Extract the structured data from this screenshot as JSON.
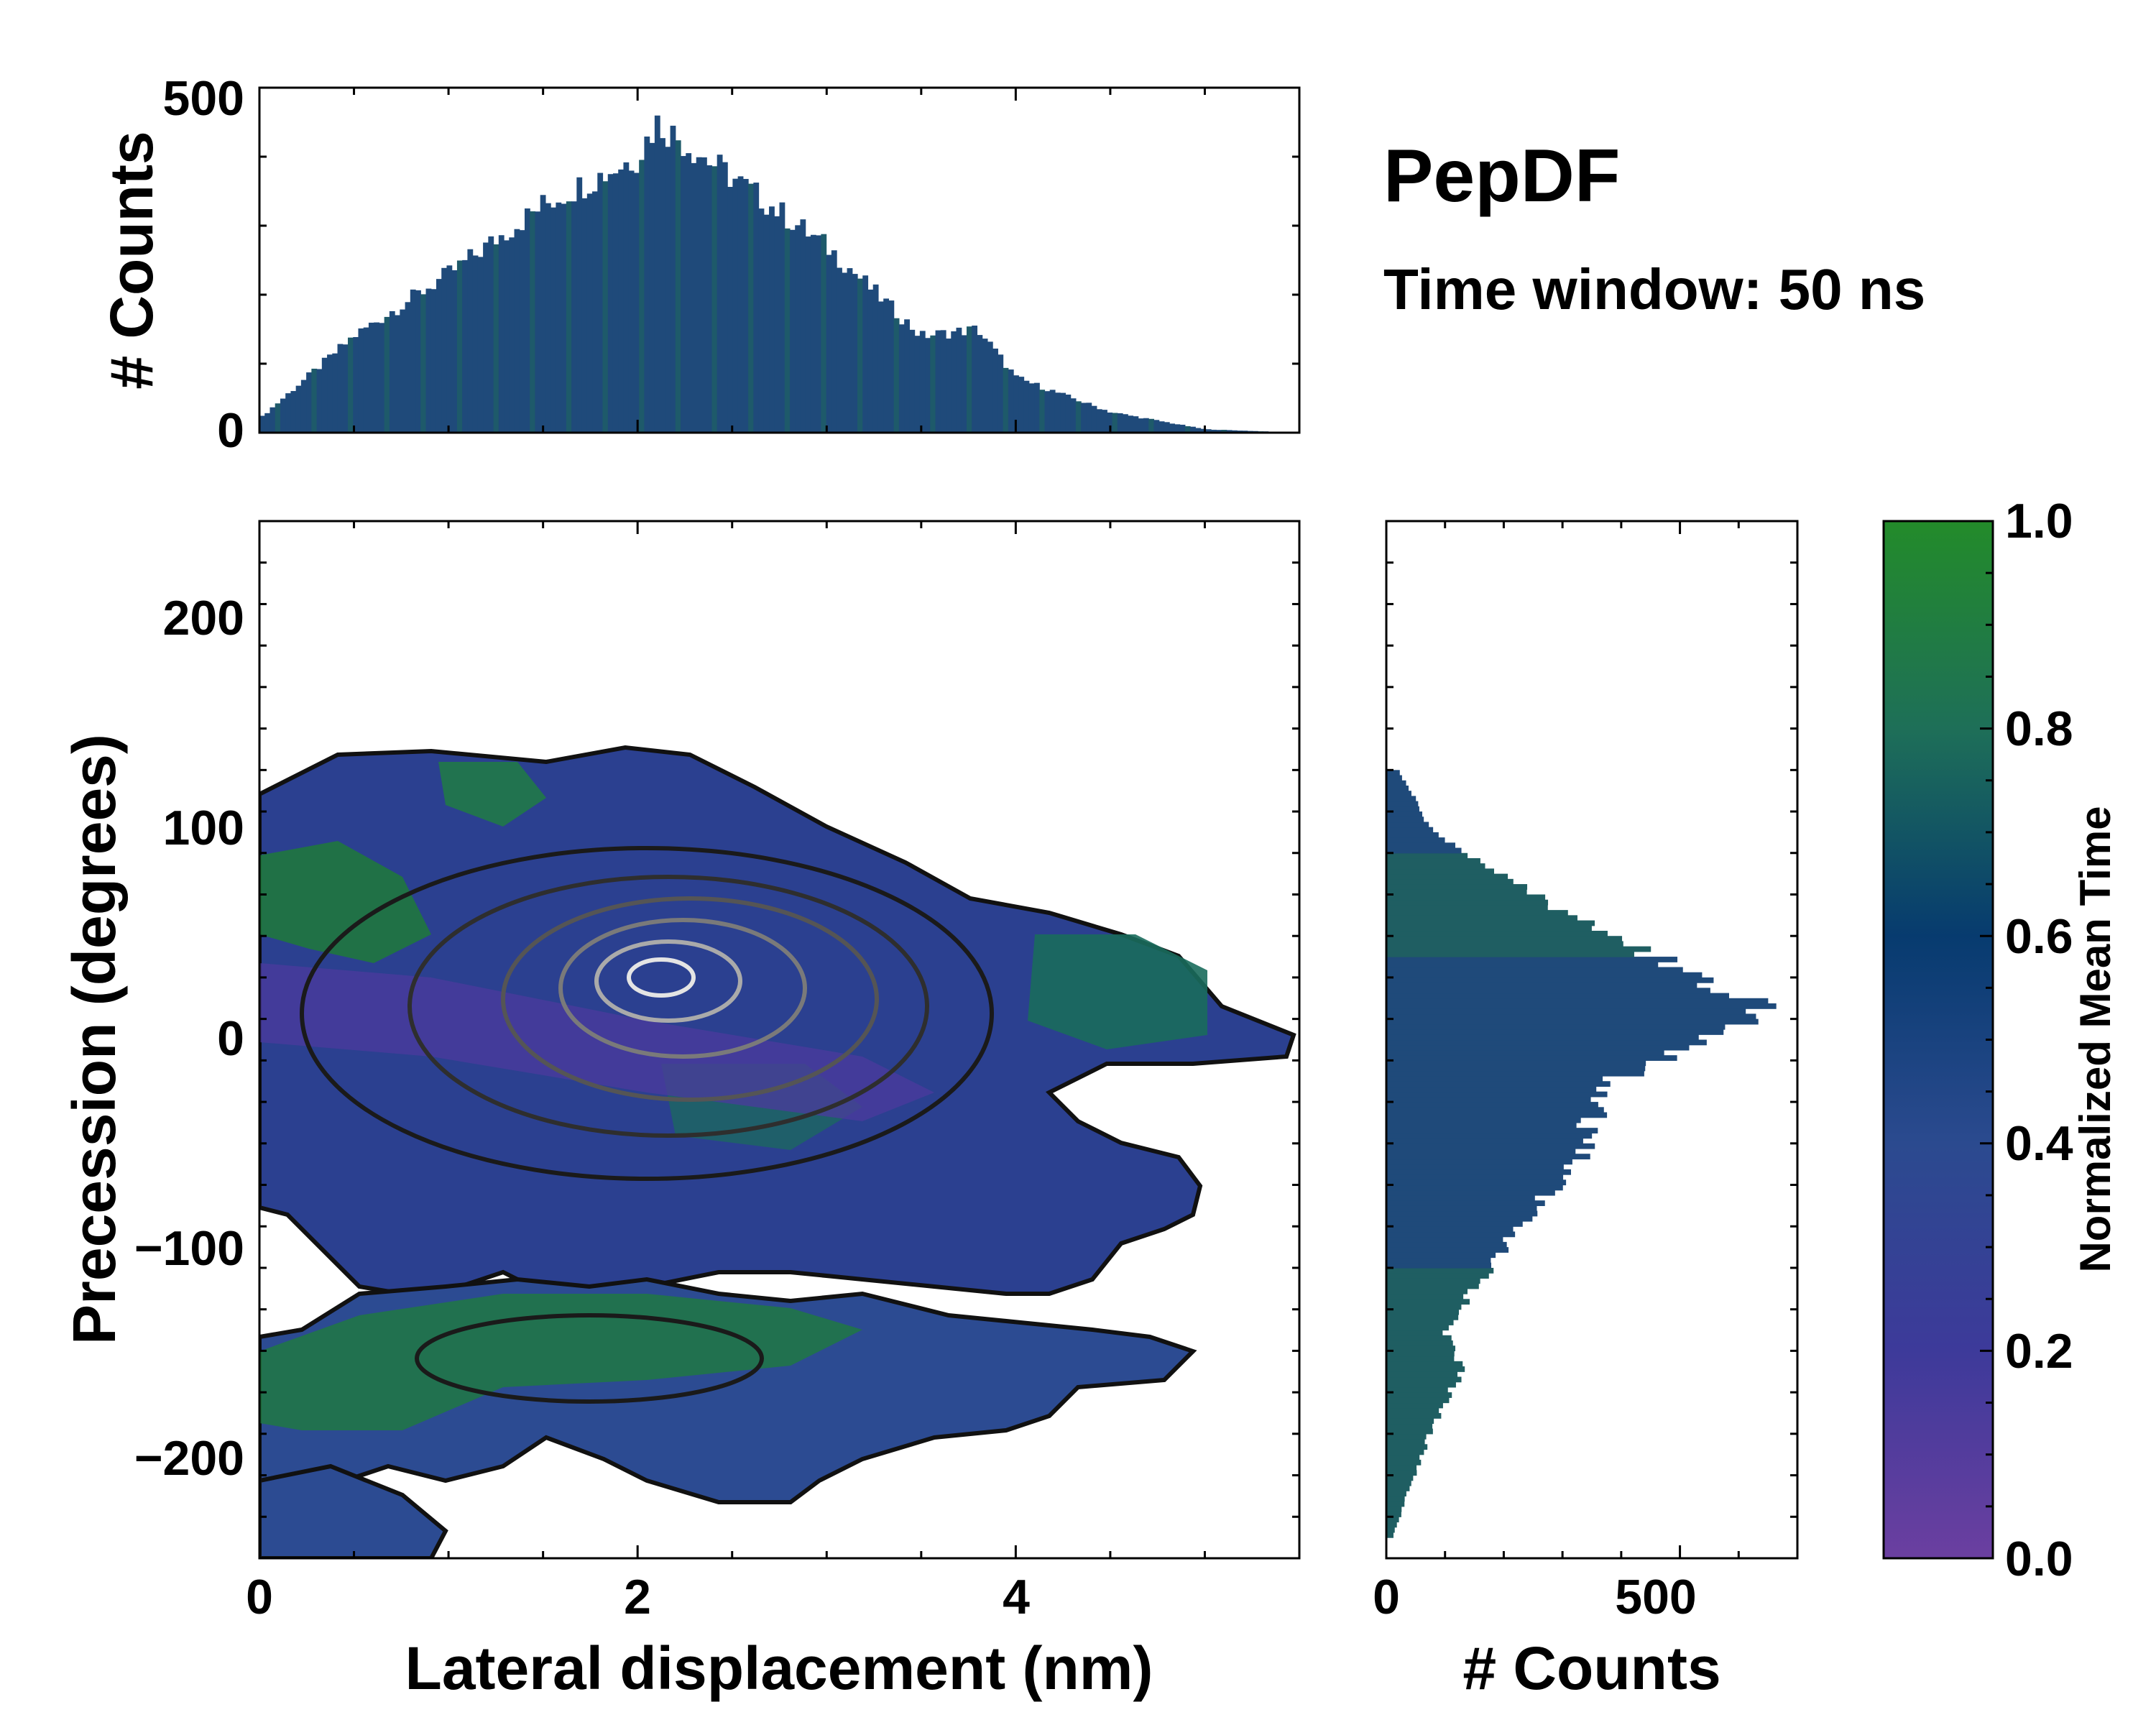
{
  "chart_data": [
    {
      "id": "top_histogram",
      "type": "bar",
      "title": "",
      "xlabel": "",
      "ylabel": "# Counts",
      "xlim": [
        0,
        5.5
      ],
      "ylim": [
        0,
        500
      ],
      "yticks": [
        0,
        500
      ],
      "ytick_labels": [
        "0",
        "500"
      ],
      "x": [
        0.0,
        0.5,
        1.0,
        1.5,
        2.0,
        2.1,
        2.5,
        3.0,
        3.5,
        3.8,
        4.0,
        4.5,
        5.0,
        5.5
      ],
      "values": [
        20,
        140,
        230,
        330,
        400,
        450,
        370,
        270,
        140,
        150,
        80,
        30,
        5,
        0
      ],
      "color": "#1f4a7a"
    },
    {
      "id": "title_block",
      "type": "table",
      "title": "PepDF",
      "subtitle": "Time window: 50 ns"
    },
    {
      "id": "main_2d_histogram",
      "type": "heatmap",
      "xlabel": "Lateral displacement (nm)",
      "ylabel": "Precession (degrees)",
      "xlim": [
        0,
        5.5
      ],
      "ylim": [
        -250,
        250
      ],
      "xticks": [
        0,
        2,
        4
      ],
      "xtick_labels": [
        "0",
        "2",
        "4"
      ],
      "yticks": [
        200,
        100,
        0,
        -100,
        -200
      ],
      "ytick_labels": [
        "200",
        "100",
        "0",
        "−100",
        "−200"
      ],
      "density_peak": {
        "x": 2.0,
        "y": 25
      },
      "contour_levels": 6
    },
    {
      "id": "right_histogram",
      "type": "bar",
      "orientation": "horizontal",
      "xlabel": "# Counts",
      "ylabel": "",
      "xlim": [
        0,
        700
      ],
      "ylim": [
        -250,
        250
      ],
      "xticks": [
        0,
        500
      ],
      "xtick_labels": [
        "0",
        "500"
      ],
      "y": [
        -240,
        -200,
        -180,
        -160,
        -140,
        -100,
        -60,
        -20,
        0,
        15,
        25,
        45,
        70,
        100,
        130
      ],
      "values": [
        10,
        60,
        90,
        130,
        100,
        200,
        320,
        380,
        550,
        640,
        560,
        420,
        250,
        80,
        20
      ],
      "color": "#1f4a7a"
    },
    {
      "id": "colorbar",
      "type": "heatmap",
      "label": "Normalized Mean Time",
      "range": [
        0.0,
        1.0
      ],
      "ticks": [
        0.0,
        0.2,
        0.4,
        0.6,
        0.8,
        1.0
      ],
      "tick_labels": [
        "0.0",
        "0.2",
        "0.4",
        "0.6",
        "0.8",
        "1.0"
      ],
      "colors": [
        "#6b3fa0",
        "#3d3a9a",
        "#2b4a8f",
        "#073b6f",
        "#1e6f58",
        "#238b2a"
      ]
    }
  ]
}
